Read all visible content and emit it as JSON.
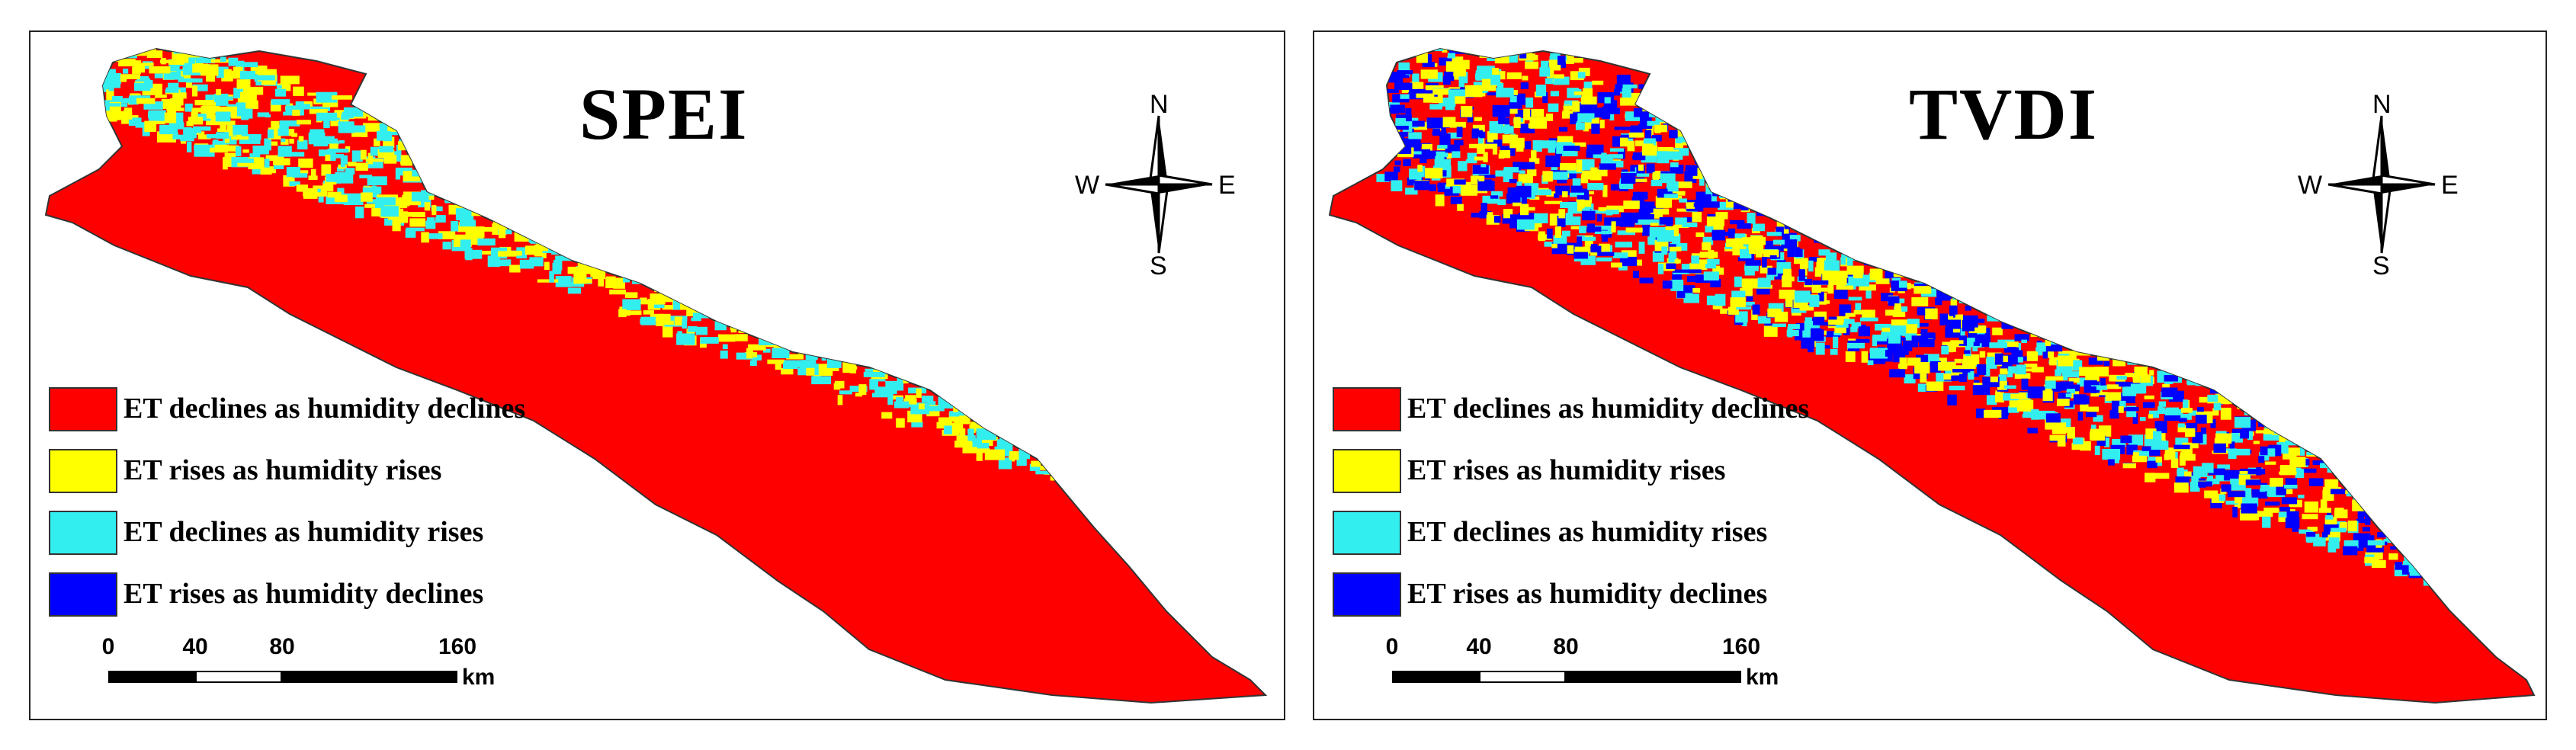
{
  "colors": {
    "et_declines_humidity_declines": "#ff0000",
    "et_rises_humidity_rises": "#ffff00",
    "et_declines_humidity_rises": "#33eeee",
    "et_rises_humidity_declines": "#0000ff"
  },
  "compass_labels": {
    "n": "N",
    "e": "E",
    "s": "S",
    "w": "W"
  },
  "scale": {
    "ticks": [
      "0",
      "40",
      "80",
      "160"
    ],
    "unit": "km"
  },
  "legend": [
    {
      "label": "ET declines as humidity declines",
      "color_key": "et_declines_humidity_declines"
    },
    {
      "label": "ET rises as humidity rises",
      "color_key": "et_rises_humidity_rises"
    },
    {
      "label": "ET declines as humidity rises",
      "color_key": "et_declines_humidity_rises"
    },
    {
      "label": "ET rises as humidity declines",
      "color_key": "et_rises_humidity_declines"
    }
  ],
  "maps": [
    {
      "title": "SPEI",
      "dominant_color": "et_declines_humidity_declines",
      "patches": [
        "et_rises_humidity_rises",
        "et_declines_humidity_rises"
      ]
    },
    {
      "title": "TVDI",
      "dominant_color": "et_declines_humidity_declines",
      "patches": [
        "et_declines_humidity_rises",
        "et_rises_humidity_declines",
        "et_rises_humidity_rises"
      ]
    }
  ]
}
